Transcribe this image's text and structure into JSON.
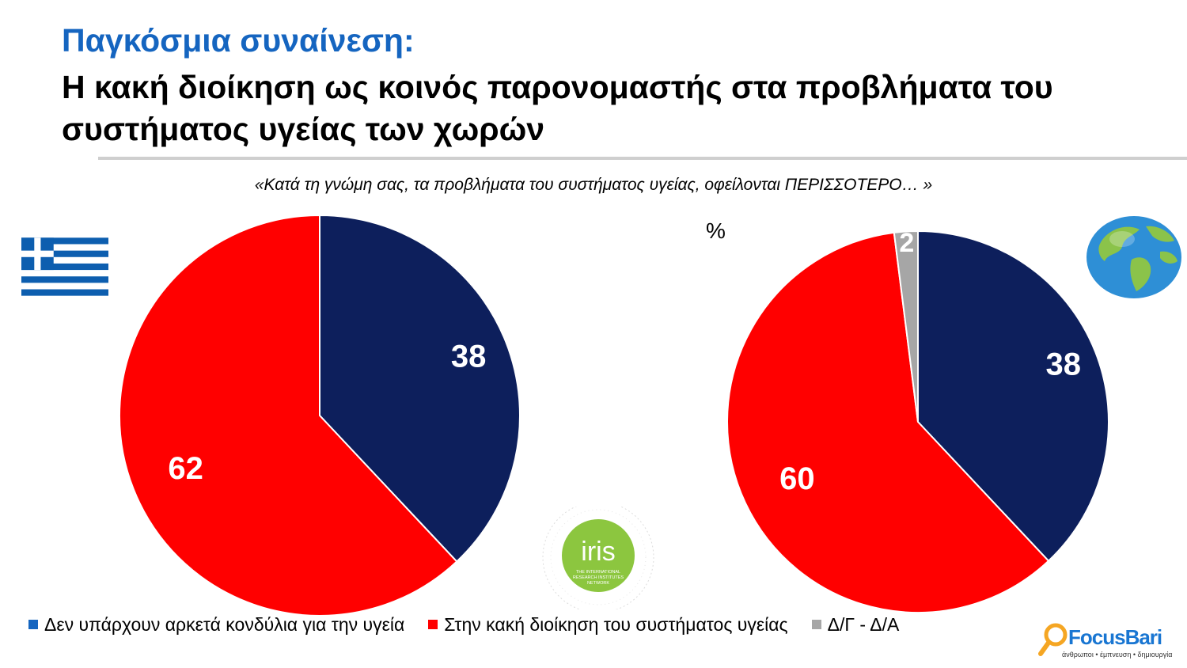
{
  "title": {
    "line1": "Παγκόσμια συναίνεση:",
    "line2": "Η κακή διοίκηση ως κοινός παρονομαστής στα προβλήματα του συστήματος υγείας των χωρών"
  },
  "question": "«Κατά τη γνώμη σας, τα προβλήματα του συστήματος υγείας, οφείλονται ΠΕΡΙΣΣΟΤΕΡΟ… »",
  "unit": "%",
  "colors": {
    "navy": "#0d1f5c",
    "red": "#ff0000",
    "gray": "#a6a6a6",
    "title_blue": "#1565c0"
  },
  "icons": {
    "greece": "greek-flag-icon",
    "world": "globe-icon",
    "iris": "iris-logo-icon",
    "focus": "magnifier-icon"
  },
  "iris_logo": {
    "name": "iris",
    "tagline": [
      "THE INTERNATIONAL",
      "RESEARCH INSTITUTES",
      "NETWORK"
    ]
  },
  "chart_data": [
    {
      "type": "pie",
      "title": "",
      "slices": [
        {
          "label": "Δεν υπάρχουν αρκετά κονδύλια για την υγεία",
          "value": 38,
          "color": "#0d1f5c"
        },
        {
          "label": "Στην κακή διοίκηση του συστήματος υγείας",
          "value": 62,
          "color": "#ff0000"
        }
      ]
    },
    {
      "type": "pie",
      "title": "",
      "slices": [
        {
          "label": "Δεν υπάρχουν αρκετά κονδύλια για την υγεία",
          "value": 38,
          "color": "#0d1f5c"
        },
        {
          "label": "Στην κακή διοίκηση του συστήματος υγείας",
          "value": 60,
          "color": "#ff0000"
        },
        {
          "label": "Δ/Γ - Δ/Α",
          "value": 2,
          "color": "#a6a6a6"
        }
      ]
    }
  ],
  "legend": [
    {
      "label": "Δεν υπάρχουν αρκετά κονδύλια για την υγεία",
      "color": "#0d1f5c"
    },
    {
      "label": "Στην κακή διοίκηση του συστήματος υγείας",
      "color": "#ff0000"
    },
    {
      "label": "Δ/Γ - Δ/Α",
      "color": "#a6a6a6"
    }
  ],
  "logo": {
    "name": "FocusBari",
    "tagline": "άνθρωποι • έμπνευση • δημιουργία"
  }
}
